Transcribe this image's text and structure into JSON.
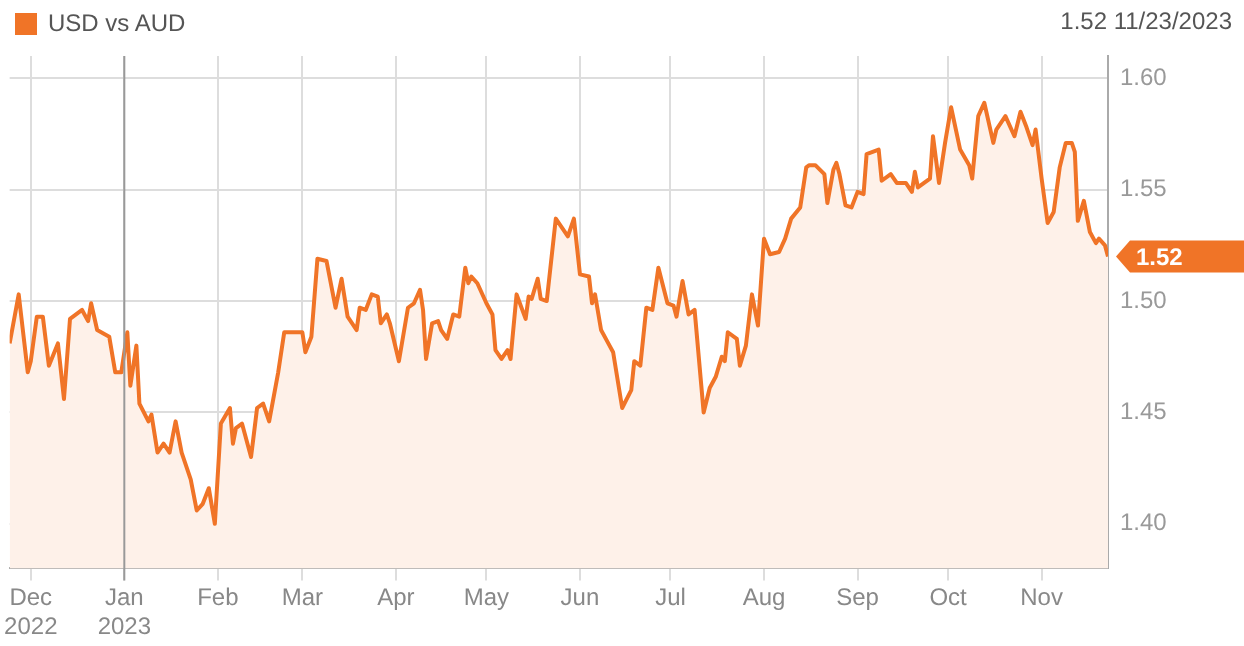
{
  "chart_data": {
    "type": "area",
    "legend": "top left",
    "grid": true,
    "series": [
      {
        "name": "USD vs AUD",
        "color": "#f07427",
        "x": [
          "2022-11-24",
          "2022-11-27",
          "2022-11-30",
          "2022-12-01",
          "2022-12-03",
          "2022-12-05",
          "2022-12-07",
          "2022-12-10",
          "2022-12-12",
          "2022-12-14",
          "2022-12-16",
          "2022-12-18",
          "2022-12-20",
          "2022-12-21",
          "2022-12-23",
          "2022-12-27",
          "2022-12-29",
          "2022-12-31",
          "2023-01-02",
          "2023-01-03",
          "2023-01-05",
          "2023-01-06",
          "2023-01-09",
          "2023-01-10",
          "2023-01-12",
          "2023-01-14",
          "2023-01-16",
          "2023-01-18",
          "2023-01-20",
          "2023-01-23",
          "2023-01-25",
          "2023-01-27",
          "2023-01-29",
          "2023-01-31",
          "2023-02-02",
          "2023-02-05",
          "2023-02-06",
          "2023-02-07",
          "2023-02-09",
          "2023-02-12",
          "2023-02-14",
          "2023-02-16",
          "2023-02-18",
          "2023-02-21",
          "2023-02-23",
          "2023-02-26",
          "2023-03-01",
          "2023-03-02",
          "2023-03-04",
          "2023-03-06",
          "2023-03-09",
          "2023-03-12",
          "2023-03-14",
          "2023-03-16",
          "2023-03-19",
          "2023-03-20",
          "2023-03-22",
          "2023-03-24",
          "2023-03-26",
          "2023-03-27",
          "2023-03-29",
          "2023-03-30",
          "2023-04-02",
          "2023-04-05",
          "2023-04-07",
          "2023-04-09",
          "2023-04-10",
          "2023-04-11",
          "2023-04-13",
          "2023-04-15",
          "2023-04-16",
          "2023-04-18",
          "2023-04-20",
          "2023-04-22",
          "2023-04-24",
          "2023-04-25",
          "2023-04-26",
          "2023-04-28",
          "2023-05-01",
          "2023-05-03",
          "2023-05-04",
          "2023-05-06",
          "2023-05-08",
          "2023-05-09",
          "2023-05-11",
          "2023-05-14",
          "2023-05-15",
          "2023-05-16",
          "2023-05-18",
          "2023-05-19",
          "2023-05-21",
          "2023-05-24",
          "2023-05-28",
          "2023-05-30",
          "2023-06-01",
          "2023-06-04",
          "2023-06-05",
          "2023-06-06",
          "2023-06-08",
          "2023-06-10",
          "2023-06-12",
          "2023-06-15",
          "2023-06-18",
          "2023-06-19",
          "2023-06-21",
          "2023-06-23",
          "2023-06-25",
          "2023-06-27",
          "2023-06-30",
          "2023-07-02",
          "2023-07-03",
          "2023-07-05",
          "2023-07-07",
          "2023-07-09",
          "2023-07-12",
          "2023-07-14",
          "2023-07-16",
          "2023-07-18",
          "2023-07-19",
          "2023-07-20",
          "2023-07-23",
          "2023-07-24",
          "2023-07-26",
          "2023-07-28",
          "2023-07-30",
          "2023-08-01",
          "2023-08-03",
          "2023-08-06",
          "2023-08-08",
          "2023-08-10",
          "2023-08-13",
          "2023-08-15",
          "2023-08-16",
          "2023-08-18",
          "2023-08-21",
          "2023-08-22",
          "2023-08-24",
          "2023-08-25",
          "2023-08-26",
          "2023-08-28",
          "2023-08-30",
          "2023-09-01",
          "2023-09-03",
          "2023-09-04",
          "2023-09-08",
          "2023-09-09",
          "2023-09-12",
          "2023-09-14",
          "2023-09-17",
          "2023-09-19",
          "2023-09-20",
          "2023-09-21",
          "2023-09-25",
          "2023-09-26",
          "2023-09-28",
          "2023-09-30",
          "2023-10-02",
          "2023-10-05",
          "2023-10-08",
          "2023-10-09",
          "2023-10-11",
          "2023-10-13",
          "2023-10-16",
          "2023-10-17",
          "2023-10-20",
          "2023-10-23",
          "2023-10-25",
          "2023-10-27",
          "2023-10-29",
          "2023-10-30",
          "2023-11-01",
          "2023-11-03",
          "2023-11-05",
          "2023-11-07",
          "2023-11-09",
          "2023-11-11",
          "2023-11-12",
          "2023-11-13",
          "2023-11-15",
          "2023-11-17",
          "2023-11-19",
          "2023-11-20",
          "2023-11-22",
          "2023-11-23"
        ],
        "values": [
          1.481,
          1.503,
          1.468,
          1.473,
          1.493,
          1.493,
          1.471,
          1.481,
          1.456,
          1.492,
          1.494,
          1.496,
          1.491,
          1.499,
          1.487,
          1.484,
          1.468,
          1.468,
          1.486,
          1.462,
          1.48,
          1.454,
          1.446,
          1.449,
          1.432,
          1.436,
          1.432,
          1.446,
          1.432,
          1.42,
          1.406,
          1.409,
          1.416,
          1.4,
          1.445,
          1.452,
          1.436,
          1.443,
          1.445,
          1.43,
          1.452,
          1.454,
          1.446,
          1.468,
          1.486,
          1.486,
          1.486,
          1.477,
          1.484,
          1.519,
          1.518,
          1.497,
          1.51,
          1.493,
          1.487,
          1.497,
          1.496,
          1.503,
          1.502,
          1.49,
          1.494,
          1.49,
          1.473,
          1.497,
          1.499,
          1.505,
          1.496,
          1.474,
          1.49,
          1.491,
          1.487,
          1.483,
          1.494,
          1.493,
          1.515,
          1.508,
          1.511,
          1.508,
          1.499,
          1.494,
          1.478,
          1.474,
          1.478,
          1.474,
          1.503,
          1.492,
          1.502,
          1.501,
          1.51,
          1.501,
          1.5,
          1.537,
          1.529,
          1.537,
          1.512,
          1.511,
          1.499,
          1.503,
          1.487,
          1.482,
          1.477,
          1.452,
          1.46,
          1.473,
          1.471,
          1.497,
          1.496,
          1.515,
          1.499,
          1.498,
          1.493,
          1.509,
          1.494,
          1.496,
          1.45,
          1.461,
          1.466,
          1.475,
          1.473,
          1.486,
          1.483,
          1.471,
          1.48,
          1.503,
          1.489,
          1.528,
          1.521,
          1.522,
          1.528,
          1.537,
          1.542,
          1.56,
          1.561,
          1.561,
          1.557,
          1.544,
          1.559,
          1.562,
          1.557,
          1.543,
          1.542,
          1.549,
          1.548,
          1.566,
          1.568,
          1.554,
          1.557,
          1.553,
          1.553,
          1.549,
          1.558,
          1.551,
          1.555,
          1.574,
          1.553,
          1.571,
          1.587,
          1.568,
          1.561,
          1.555,
          1.583,
          1.589,
          1.571,
          1.577,
          1.583,
          1.574,
          1.585,
          1.578,
          1.57,
          1.577,
          1.555,
          1.535,
          1.54,
          1.56,
          1.571,
          1.571,
          1.567,
          1.536,
          1.545,
          1.531,
          1.526,
          1.528,
          1.525,
          1.52
        ]
      }
    ],
    "xlim": [
      "2022-11-24",
      "2023-11-23"
    ],
    "xticks": [
      {
        "value": "2022-12-01",
        "label": "Dec\n2022"
      },
      {
        "value": "2023-01-01",
        "label": "Jan\n2023"
      },
      {
        "value": "2023-02-01",
        "label": "Feb"
      },
      {
        "value": "2023-03-01",
        "label": "Mar"
      },
      {
        "value": "2023-04-01",
        "label": "Apr"
      },
      {
        "value": "2023-05-01",
        "label": "May"
      },
      {
        "value": "2023-06-01",
        "label": "Jun"
      },
      {
        "value": "2023-07-01",
        "label": "Jul"
      },
      {
        "value": "2023-08-01",
        "label": "Aug"
      },
      {
        "value": "2023-09-01",
        "label": "Sep"
      },
      {
        "value": "2023-10-01",
        "label": "Oct"
      },
      {
        "value": "2023-11-01",
        "label": "Nov"
      }
    ],
    "ylim": [
      1.38,
      1.61
    ],
    "yticks": [
      {
        "value": 1.4,
        "label": "1.40"
      },
      {
        "value": 1.45,
        "label": "1.45"
      },
      {
        "value": 1.5,
        "label": "1.50"
      },
      {
        "value": 1.55,
        "label": "1.55"
      },
      {
        "value": 1.6,
        "label": "1.60"
      }
    ],
    "ref_lines": [
      {
        "axis": "x",
        "value": "2023-01-01",
        "color": "#999999"
      }
    ],
    "annotations": [
      "1.52 11/23/2023",
      {
        "text": "1.52",
        "x": "2023-11-23",
        "y": 1.52
      }
    ]
  }
}
